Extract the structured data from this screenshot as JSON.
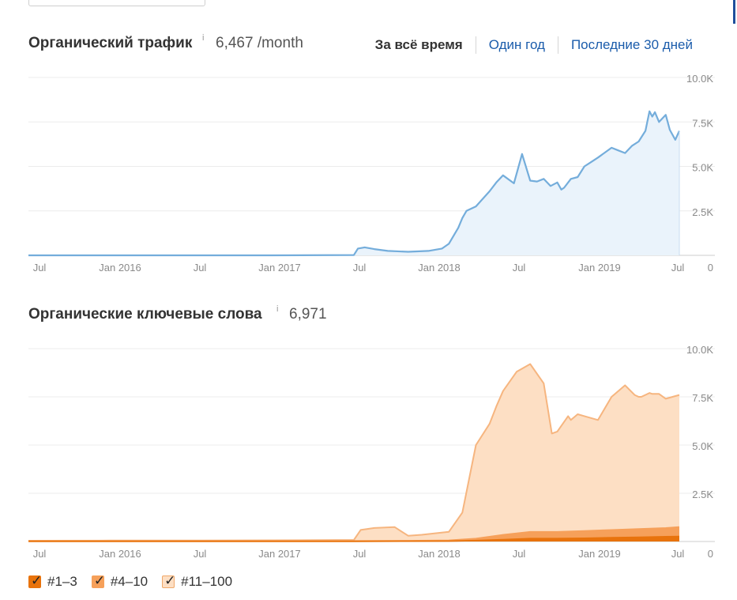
{
  "colors": {
    "traffic_line": "#74addb",
    "traffic_fill": "#eaf3fb",
    "kw_top3": "#e8730c",
    "kw_4_10": "#f6a05a",
    "kw_11_100": "#fddfc4",
    "kw_11_100_line": "#f6b57f",
    "link": "#1b5cab"
  },
  "traffic": {
    "title": "Органический трафик",
    "info_icon": "i",
    "value": "6,467",
    "unit": "/month"
  },
  "ranges": [
    {
      "label": "За всё время",
      "active": true
    },
    {
      "label": "Один год",
      "active": false
    },
    {
      "label": "Последние 30 дней",
      "active": false
    }
  ],
  "keywords": {
    "title": "Органические ключевые слова",
    "info_icon": "i",
    "value": "6,971"
  },
  "legend": [
    {
      "label": "#1–3",
      "color_key": "kw_top3",
      "checked": true
    },
    {
      "label": "#4–10",
      "color_key": "kw_4_10",
      "checked": true
    },
    {
      "label": "#11–100",
      "color_key": "kw_11_100",
      "checked": true
    }
  ],
  "chart_data": [
    {
      "type": "area",
      "xlabel": "",
      "ylabel": "",
      "x_ticks": [
        "Jul",
        "Jan 2016",
        "Jul",
        "Jan 2017",
        "Jul",
        "Jan 2018",
        "Jul",
        "Jan 2019",
        "Jul"
      ],
      "y_ticks": [
        "0",
        "2.5K",
        "5.0K",
        "7.5K",
        "10.0K"
      ],
      "ylim": [
        0,
        10000
      ],
      "xlim_months": [
        0,
        48
      ],
      "grid": true,
      "series": [
        {
          "name": "",
          "x": [
            0,
            6,
            12,
            18,
            24,
            24.3,
            24.8,
            25.5,
            26.5,
            28,
            29.5,
            30.5,
            31,
            31.7,
            32,
            32.3,
            33,
            34,
            34.5,
            35,
            35.8,
            36.4,
            37,
            37.5,
            38,
            38.5,
            39,
            39.3,
            39.5,
            40,
            40.5,
            41,
            41.5,
            42,
            43,
            43.5,
            44,
            44.5,
            45,
            45.5,
            45.8,
            46,
            46.2,
            46.5,
            47,
            47.3,
            47.7,
            48
          ],
          "values": [
            0,
            0,
            0,
            0,
            20,
            380,
            450,
            350,
            250,
            200,
            250,
            380,
            650,
            1550,
            2100,
            2500,
            2750,
            3600,
            4100,
            4500,
            4050,
            5700,
            4200,
            4150,
            4300,
            3900,
            4100,
            3700,
            3800,
            4300,
            4400,
            5000,
            5250,
            5500,
            6050,
            5900,
            5750,
            6150,
            6400,
            7000,
            8100,
            7800,
            8050,
            7500,
            7900,
            7050,
            6500,
            7000
          ]
        }
      ]
    },
    {
      "type": "area",
      "xlabel": "",
      "ylabel": "",
      "x_ticks": [
        "Jul",
        "Jan 2016",
        "Jul",
        "Jan 2017",
        "Jul",
        "Jan 2018",
        "Jul",
        "Jan 2019",
        "Jul"
      ],
      "y_ticks": [
        "0",
        "2.5K",
        "5.0K",
        "7.5K",
        "10.0K"
      ],
      "ylim": [
        0,
        10000
      ],
      "xlim_months": [
        0,
        48
      ],
      "grid": true,
      "series": [
        {
          "name": "#11–100",
          "x": [
            0,
            6,
            12,
            18,
            24,
            24.5,
            25.5,
            27,
            28,
            29,
            31,
            32,
            33,
            34,
            34.5,
            35,
            36,
            37,
            38,
            38.6,
            39,
            39.8,
            40,
            40.5,
            41,
            42,
            43,
            44,
            44.7,
            45,
            45.2,
            45.8,
            46,
            46.5,
            47,
            47.5,
            48
          ],
          "values": [
            40,
            50,
            50,
            60,
            80,
            600,
            700,
            750,
            300,
            350,
            500,
            1500,
            5000,
            6100,
            7000,
            7800,
            8800,
            9200,
            8200,
            5600,
            5700,
            6500,
            6300,
            6600,
            6500,
            6300,
            7500,
            8100,
            7600,
            7500,
            7500,
            7700,
            7650,
            7650,
            7400,
            7500,
            7600
          ]
        },
        {
          "name": "#4–10",
          "x": [
            0,
            24,
            28,
            31,
            33,
            35,
            37,
            39,
            41,
            43,
            45,
            47,
            48
          ],
          "values": [
            30,
            30,
            40,
            60,
            150,
            350,
            500,
            500,
            550,
            600,
            650,
            700,
            750
          ]
        },
        {
          "name": "#1–3",
          "x": [
            0,
            24,
            28,
            31,
            33,
            35,
            37,
            39,
            41,
            43,
            45,
            47,
            48
          ],
          "values": [
            10,
            10,
            15,
            20,
            50,
            100,
            150,
            150,
            170,
            200,
            220,
            250,
            260
          ]
        }
      ]
    }
  ]
}
